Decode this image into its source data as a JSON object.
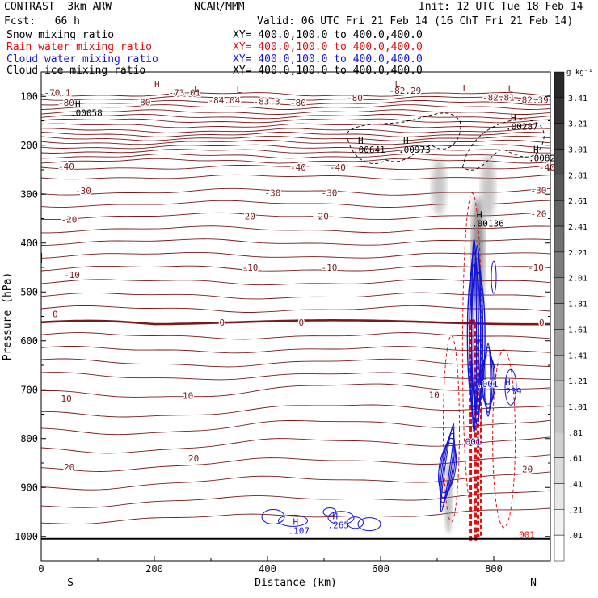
{
  "header": {
    "model": "CONTRAST  3km ARW",
    "org": "NCAR/MMM",
    "init": "Init: 12 UTC Tue 18 Feb 14",
    "fcst": "Fcst:   66 h",
    "valid": "Valid: 06 UTC Fri 21 Feb 14 (16 ChT Fri 21 Feb 14)",
    "fields": [
      {
        "label": "Snow mixing ratio",
        "xy": "XY= 400.0,100.0 to 400.0,400.0",
        "color": "#000000"
      },
      {
        "label": "Rain water mixing ratio",
        "xy": "XY= 400.0,100.0 to 400.0,400.0",
        "color": "#e01010"
      },
      {
        "label": "Cloud water mixing ratio",
        "xy": "XY= 400.0,100.0 to 400.0,400.0",
        "color": "#1414d8"
      },
      {
        "label": "Cloud ice mixing ratio",
        "xy": "XY= 400.0,100.0 to 400.0,400.0",
        "color": "#000000"
      }
    ]
  },
  "chart_data": {
    "type": "cross-section contour",
    "xlabel": "Distance (km)",
    "ylabel": "Pressure (hPa)",
    "x_ticks": [
      0,
      200,
      400,
      600,
      800
    ],
    "xlim": [
      0,
      900
    ],
    "y_ticks": [
      100,
      200,
      300,
      400,
      500,
      600,
      700,
      800,
      900,
      1000
    ],
    "ylim": [
      50,
      1050
    ],
    "x_end_labels": {
      "left": "S",
      "right": "N"
    },
    "colorbar": {
      "unit": "g kg⁻¹",
      "ticks": [
        "3.41",
        "3.21",
        "3.01",
        "2.81",
        "2.61",
        "2.41",
        "2.21",
        "2.01",
        "1.81",
        "1.61",
        "1.41",
        "1.21",
        "1.01",
        ".81",
        ".61",
        ".41",
        ".21",
        ".01"
      ]
    },
    "temperature_contours": [
      {
        "label": "-70.1",
        "x": 5,
        "p": 92
      },
      {
        "label": "-80",
        "x": 30,
        "p": 113
      },
      {
        "label": "-80",
        "x": 165,
        "p": 112
      },
      {
        "label": "-84.04",
        "x": 295,
        "p": 108
      },
      {
        "label": "-83.3",
        "x": 375,
        "p": 110
      },
      {
        "label": "-80",
        "x": 440,
        "p": 113
      },
      {
        "label": "-80",
        "x": 540,
        "p": 103
      },
      {
        "label": "-82.29",
        "x": 615,
        "p": 88
      },
      {
        "label": "-82.81",
        "x": 780,
        "p": 102
      },
      {
        "label": "-82.39",
        "x": 840,
        "p": 107
      },
      {
        "label": "-73.01",
        "x": 225,
        "p": 92
      },
      {
        "label": "-40",
        "x": 30,
        "p": 243
      },
      {
        "label": "-40",
        "x": 440,
        "p": 245
      },
      {
        "label": "-40",
        "x": 510,
        "p": 245
      },
      {
        "label": "-40",
        "x": 880,
        "p": 245
      },
      {
        "label": "-30",
        "x": 60,
        "p": 293
      },
      {
        "label": "-30",
        "x": 395,
        "p": 297
      },
      {
        "label": "-30",
        "x": 495,
        "p": 297
      },
      {
        "label": "-30",
        "x": 865,
        "p": 292
      },
      {
        "label": "-20",
        "x": 35,
        "p": 352
      },
      {
        "label": "-20",
        "x": 350,
        "p": 345
      },
      {
        "label": "-20",
        "x": 480,
        "p": 345
      },
      {
        "label": "-20",
        "x": 865,
        "p": 340
      },
      {
        "label": "-10",
        "x": 40,
        "p": 465
      },
      {
        "label": "-10",
        "x": 355,
        "p": 450
      },
      {
        "label": "-10",
        "x": 495,
        "p": 450
      },
      {
        "label": "-10",
        "x": 860,
        "p": 450
      },
      {
        "label": "0",
        "x": 20,
        "p": 545
      },
      {
        "label": "0",
        "x": 315,
        "p": 562
      },
      {
        "label": "0",
        "x": 455,
        "p": 562
      },
      {
        "label": "0",
        "x": 880,
        "p": 562
      },
      {
        "label": "10",
        "x": 35,
        "p": 718
      },
      {
        "label": "10",
        "x": 250,
        "p": 712
      },
      {
        "label": "10",
        "x": 685,
        "p": 710
      },
      {
        "label": "20",
        "x": 40,
        "p": 858
      },
      {
        "label": "20",
        "x": 260,
        "p": 840
      },
      {
        "label": "20",
        "x": 850,
        "p": 862
      }
    ],
    "extrema": [
      {
        "kind": "H",
        "value": ".00058",
        "x": 60,
        "p": 125
      },
      {
        "kind": "H",
        "value": "",
        "x": 200,
        "p": 85
      },
      {
        "kind": "L",
        "value": "",
        "x": 270,
        "p": 95
      },
      {
        "kind": "L",
        "value": "",
        "x": 345,
        "p": 96
      },
      {
        "kind": "L",
        "value": "",
        "x": 625,
        "p": 85
      },
      {
        "kind": "L",
        "value": "",
        "x": 745,
        "p": 93
      },
      {
        "kind": "L",
        "value": "",
        "x": 825,
        "p": 94
      },
      {
        "kind": "H",
        "value": ".00287",
        "x": 830,
        "p": 153
      },
      {
        "kind": "H",
        "value": ".00641",
        "x": 560,
        "p": 200
      },
      {
        "kind": "H",
        "value": ".00973",
        "x": 640,
        "p": 200
      },
      {
        "kind": "H",
        "value": ".00827",
        "x": 870,
        "p": 218
      },
      {
        "kind": "H",
        "value": ".00136",
        "x": 770,
        "p": 352
      },
      {
        "kind": "H",
        "value": ".239",
        "x": 820,
        "p": 695
      },
      {
        "kind": "H",
        "value": ".107",
        "x": 445,
        "p": 980
      },
      {
        "kind": "H",
        "value": ".265",
        "x": 515,
        "p": 968
      }
    ],
    "cloud_water_labels": [
      {
        "value": ".001",
        "x": 770,
        "p": 695
      },
      {
        "value": ".001",
        "x": 740,
        "p": 813
      }
    ],
    "rain_labels": [
      {
        "value": ".001",
        "x": 835,
        "p": 1003
      }
    ],
    "surface_pressure_hpa": 1005
  }
}
